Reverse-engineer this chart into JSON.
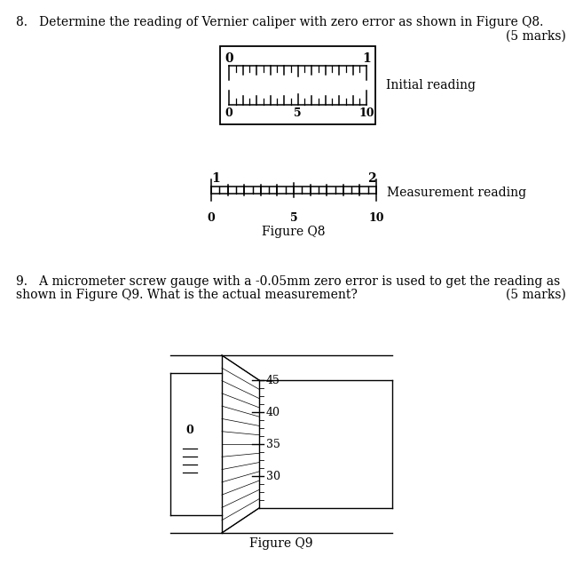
{
  "bg_color": "#ffffff",
  "text_color": "#000000",
  "q8_text": "8.   Determine the reading of Vernier caliper with zero error as shown in Figure Q8.",
  "q8_marks": "(5 marks)",
  "figure_q8": "Figure Q8",
  "initial_label": "Initial reading",
  "measurement_label": "Measurement reading",
  "q9_text_line1": "9.   A micrometer screw gauge with a -0.05mm zero error is used to get the reading as",
  "q9_text_line2": "shown in Figure Q9. What is the actual measurement?",
  "q9_marks": "(5 marks)",
  "figure_q9": "Figure Q9",
  "font_size_body": 10,
  "font_size_label": 9
}
